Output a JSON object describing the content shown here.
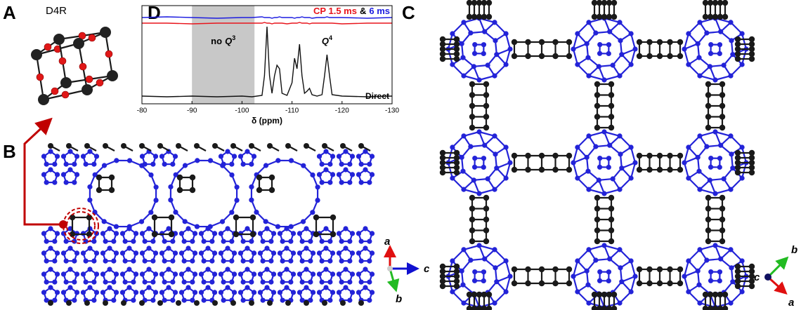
{
  "panels": {
    "a": "A",
    "b": "B",
    "c": "C",
    "d": "D"
  },
  "d4r_label": "D4R",
  "axes_b": {
    "a": "a",
    "b": "b",
    "c": "c"
  },
  "axes_c": {
    "a": "a",
    "b": "b",
    "c": "c"
  },
  "chart_data": {
    "type": "line",
    "xlabel": "δ (ppm)",
    "xlim": [
      -80,
      -130
    ],
    "xticks": [
      -80,
      -90,
      -100,
      -110,
      -120,
      -130
    ],
    "ylim": [
      -0.1,
      1.3
    ],
    "shaded_region": [
      -90,
      -102.5
    ],
    "legend_joiner": "&",
    "annotations": {
      "no_q3": {
        "text": "no",
        "symbol": "Q",
        "superscript": "3"
      },
      "q4": {
        "symbol": "Q",
        "superscript": "4"
      }
    },
    "x": [
      -80,
      -85,
      -90,
      -95,
      -100,
      -102,
      -104,
      -104.5,
      -105,
      -105.5,
      -106,
      -106.5,
      -107,
      -107.5,
      -108,
      -109,
      -110,
      -110.5,
      -111,
      -111.5,
      -112,
      -112.5,
      -113,
      -113.5,
      -114,
      -115,
      -116,
      -116.5,
      -117,
      -117.5,
      -118,
      -120,
      -125,
      -130
    ],
    "series": [
      {
        "name": "CP 1.5 ms",
        "color": "#e8141b",
        "values": [
          1.05,
          1.05,
          1.04,
          1.05,
          1.05,
          1.05,
          1.05,
          1.06,
          1.05,
          1.05,
          1.04,
          1.05,
          1.05,
          1.05,
          1.05,
          1.04,
          1.05,
          1.05,
          1.05,
          1.06,
          1.05,
          1.05,
          1.05,
          1.04,
          1.05,
          1.05,
          1.05,
          1.05,
          1.05,
          1.05,
          1.05,
          1.04,
          1.05,
          1.05
        ]
      },
      {
        "name": "6 ms",
        "color": "#1c1ce0",
        "values": [
          1.13,
          1.14,
          1.13,
          1.12,
          1.13,
          1.13,
          1.14,
          1.13,
          1.13,
          1.13,
          1.12,
          1.13,
          1.13,
          1.14,
          1.13,
          1.13,
          1.13,
          1.12,
          1.13,
          1.13,
          1.14,
          1.13,
          1.13,
          1.13,
          1.12,
          1.13,
          1.13,
          1.13,
          1.14,
          1.13,
          1.13,
          1.13,
          1.12,
          1.13
        ]
      },
      {
        "name": "Direct",
        "color": "#111111",
        "values": [
          0.01,
          0.0,
          0.01,
          0.0,
          0.01,
          0.0,
          0.02,
          0.3,
          1.0,
          0.3,
          0.05,
          0.3,
          0.45,
          0.4,
          0.05,
          0.02,
          0.2,
          0.55,
          0.4,
          0.75,
          0.3,
          0.05,
          0.08,
          0.12,
          0.03,
          0.01,
          0.03,
          0.3,
          0.6,
          0.3,
          0.03,
          0.01,
          0.0,
          0.01
        ]
      }
    ]
  }
}
